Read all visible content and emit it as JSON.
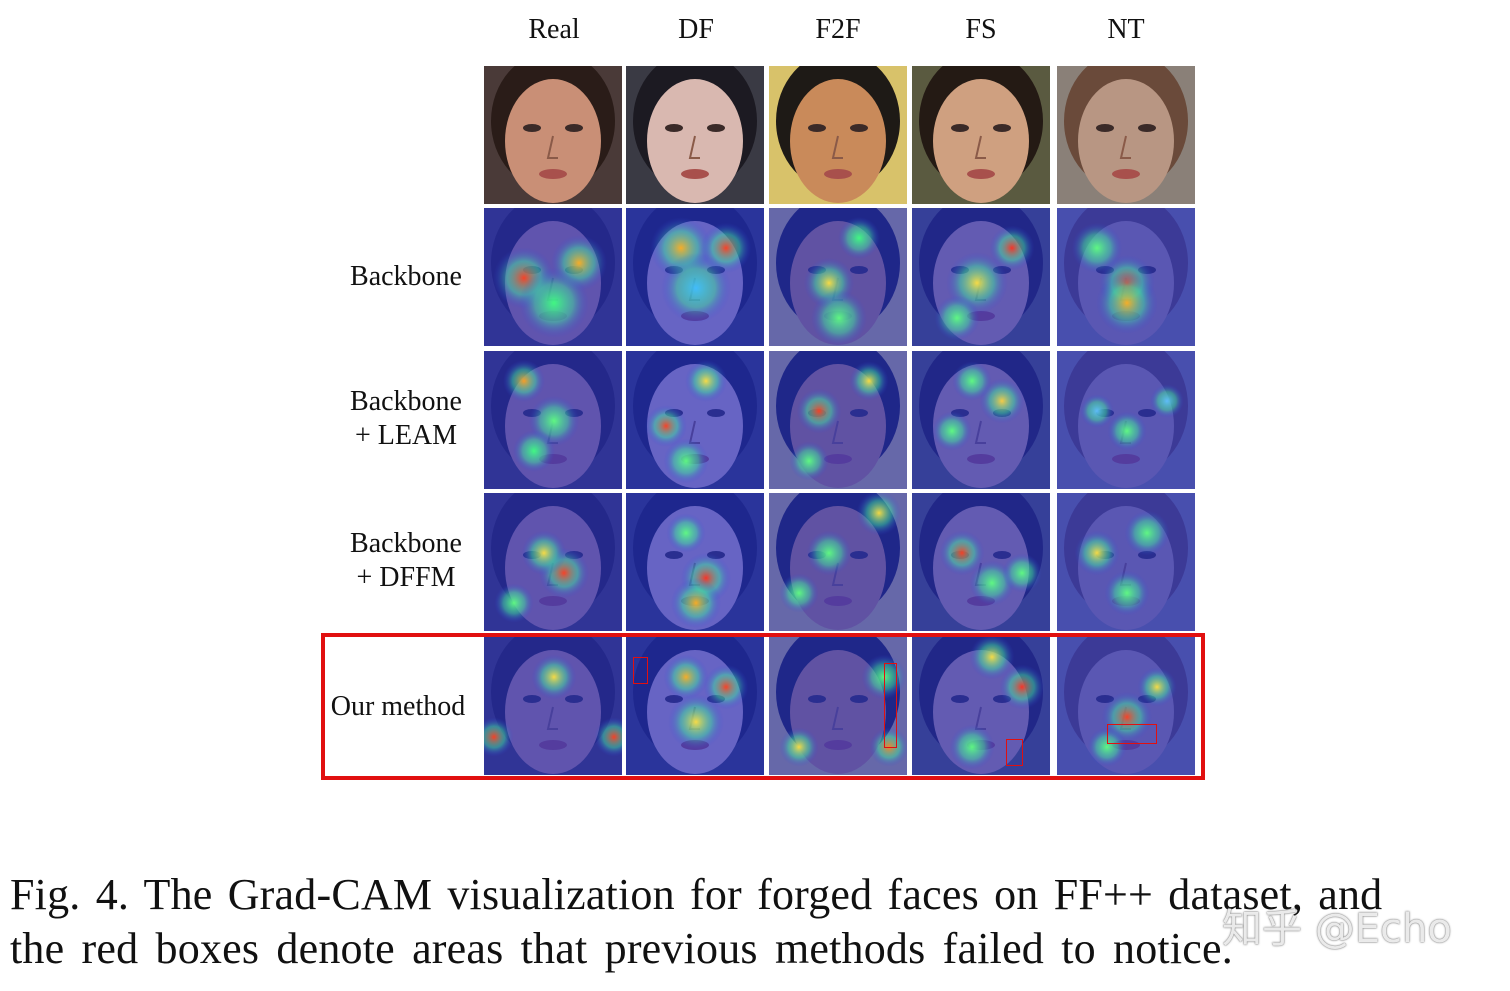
{
  "figure": {
    "columns": [
      "Real",
      "DF",
      "F2F",
      "FS",
      "NT"
    ],
    "rows": [
      {
        "id": "input",
        "label": ""
      },
      {
        "id": "backbone",
        "label": "Backbone"
      },
      {
        "id": "leam",
        "label": "Backbone\n+ LEAM",
        "line1": "Backbone",
        "line2": "+ LEAM"
      },
      {
        "id": "dffm",
        "label": "Backbone\n+ DFFM",
        "line1": "Backbone",
        "line2": "+ DFFM"
      },
      {
        "id": "ours",
        "label": "Our method"
      }
    ],
    "highlight_color": "#e11010"
  },
  "caption": {
    "line1": "Fig. 4.  The Grad-CAM visualization for forged faces on FF++ dataset, and",
    "line2": "the red boxes denote areas that previous methods failed to notice."
  },
  "watermark": "知乎 @Echo"
}
